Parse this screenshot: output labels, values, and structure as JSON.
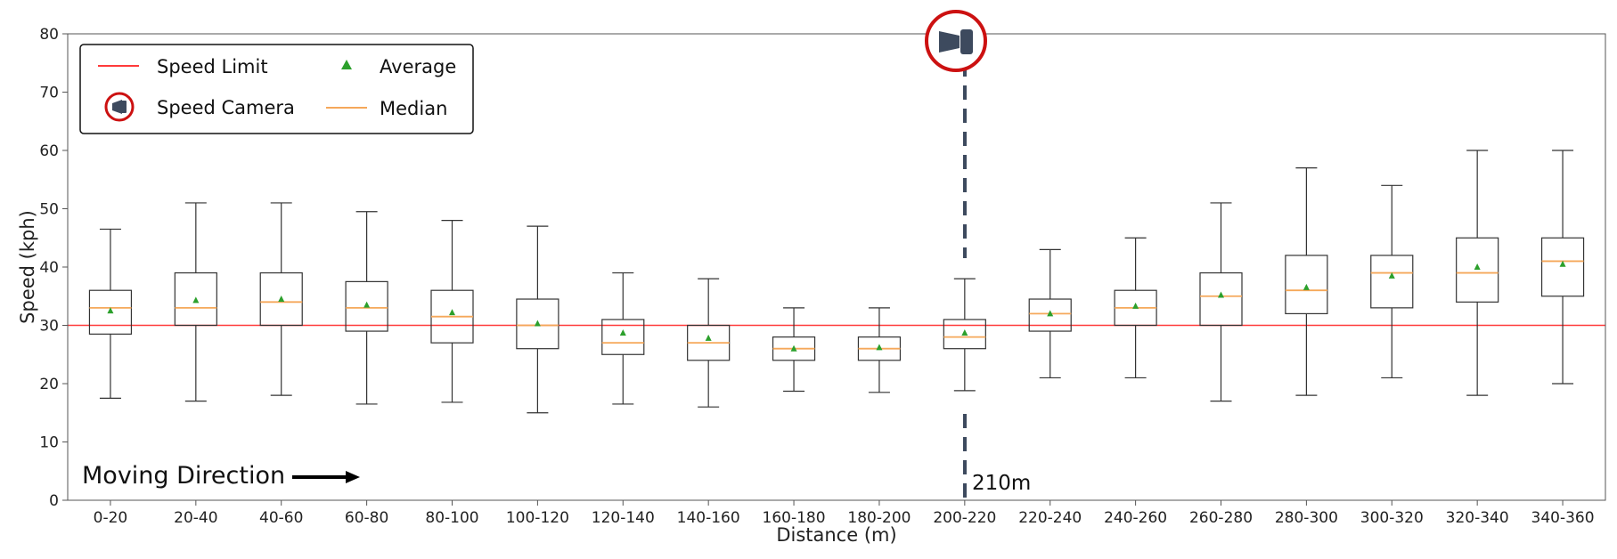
{
  "chart_data": {
    "type": "box",
    "xlabel": "Distance (m)",
    "ylabel": "Speed (kph)",
    "ylim": [
      0,
      80
    ],
    "yticks": [
      0,
      10,
      20,
      30,
      40,
      50,
      60,
      70,
      80
    ],
    "grid": false,
    "categories": [
      "0-20",
      "20-40",
      "40-60",
      "60-80",
      "80-100",
      "100-120",
      "120-140",
      "140-160",
      "160-180",
      "180-200",
      "200-220",
      "220-240",
      "240-260",
      "260-280",
      "280-300",
      "300-320",
      "320-340",
      "340-360"
    ],
    "boxes": [
      {
        "whislo": 17.5,
        "q1": 28.5,
        "med": 33.0,
        "q3": 36.0,
        "whishi": 46.5,
        "mean": 32.5
      },
      {
        "whislo": 17.0,
        "q1": 30.0,
        "med": 33.0,
        "q3": 39.0,
        "whishi": 51.0,
        "mean": 34.3
      },
      {
        "whislo": 18.0,
        "q1": 30.0,
        "med": 34.0,
        "q3": 39.0,
        "whishi": 51.0,
        "mean": 34.5
      },
      {
        "whislo": 16.5,
        "q1": 29.0,
        "med": 33.0,
        "q3": 37.5,
        "whishi": 49.5,
        "mean": 33.5
      },
      {
        "whislo": 16.8,
        "q1": 27.0,
        "med": 31.5,
        "q3": 36.0,
        "whishi": 48.0,
        "mean": 32.2
      },
      {
        "whislo": 15.0,
        "q1": 26.0,
        "med": 30.0,
        "q3": 34.5,
        "whishi": 47.0,
        "mean": 30.3
      },
      {
        "whislo": 16.5,
        "q1": 25.0,
        "med": 27.0,
        "q3": 31.0,
        "whishi": 39.0,
        "mean": 28.7
      },
      {
        "whislo": 16.0,
        "q1": 24.0,
        "med": 27.0,
        "q3": 30.0,
        "whishi": 38.0,
        "mean": 27.8
      },
      {
        "whislo": 18.7,
        "q1": 24.0,
        "med": 26.0,
        "q3": 28.0,
        "whishi": 33.0,
        "mean": 26.0
      },
      {
        "whislo": 18.5,
        "q1": 24.0,
        "med": 26.0,
        "q3": 28.0,
        "whishi": 33.0,
        "mean": 26.2
      },
      {
        "whislo": 18.8,
        "q1": 26.0,
        "med": 28.0,
        "q3": 31.0,
        "whishi": 38.0,
        "mean": 28.7
      },
      {
        "whislo": 21.0,
        "q1": 29.0,
        "med": 32.0,
        "q3": 34.5,
        "whishi": 43.0,
        "mean": 32.0
      },
      {
        "whislo": 21.0,
        "q1": 30.0,
        "med": 33.0,
        "q3": 36.0,
        "whishi": 45.0,
        "mean": 33.3
      },
      {
        "whislo": 17.0,
        "q1": 30.0,
        "med": 35.0,
        "q3": 39.0,
        "whishi": 51.0,
        "mean": 35.2
      },
      {
        "whislo": 18.0,
        "q1": 32.0,
        "med": 36.0,
        "q3": 42.0,
        "whishi": 57.0,
        "mean": 36.5
      },
      {
        "whislo": 21.0,
        "q1": 33.0,
        "med": 39.0,
        "q3": 42.0,
        "whishi": 54.0,
        "mean": 38.5
      },
      {
        "whislo": 18.0,
        "q1": 34.0,
        "med": 39.0,
        "q3": 45.0,
        "whishi": 60.0,
        "mean": 40.0
      },
      {
        "whislo": 20.0,
        "q1": 35.0,
        "med": 41.0,
        "q3": 45.0,
        "whishi": 60.0,
        "mean": 40.5
      }
    ],
    "speed_limit": 30,
    "camera_position": "200-220",
    "legend": {
      "placement": "top-left",
      "items": [
        {
          "label": "Speed Limit",
          "symbol": "red-line"
        },
        {
          "label": "Average",
          "symbol": "green-triangle"
        },
        {
          "label": "Speed Camera",
          "symbol": "camera-icon"
        },
        {
          "label": "Median",
          "symbol": "orange-line"
        }
      ]
    },
    "annotations": {
      "direction_label": "Moving Direction",
      "camera_distance_label": "210m"
    },
    "colors": {
      "speed_limit": "#ff3b3b",
      "median": "#f5a85a",
      "mean": "#2ca02c",
      "box": "#333333",
      "camera_ring": "#cc1111",
      "camera_body": "#3d4a5e",
      "camera_line": "#3d4a5e"
    }
  }
}
